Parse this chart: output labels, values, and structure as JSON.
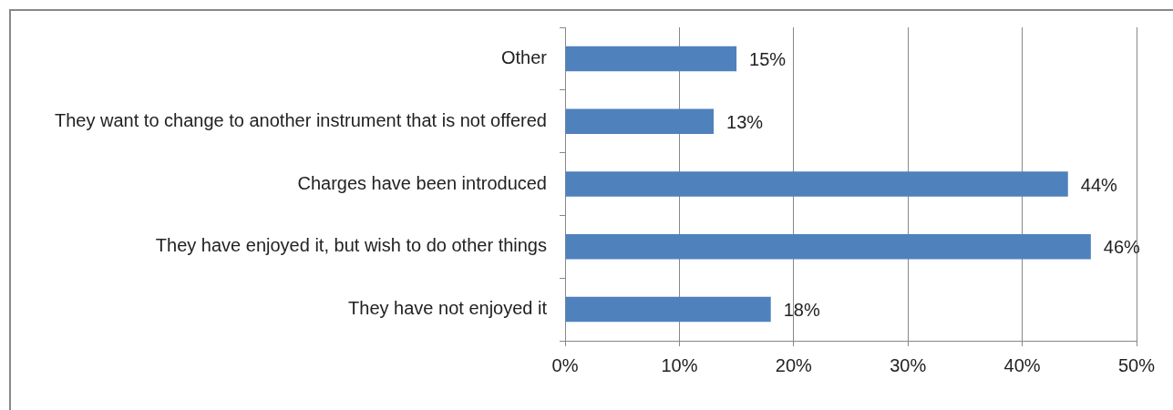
{
  "chart_data": {
    "type": "bar",
    "orientation": "horizontal",
    "categories": [
      "Other",
      "They want to change to another instrument that is not offered",
      "Charges have been introduced",
      "They have enjoyed it, but wish to do other things",
      "They have not enjoyed it"
    ],
    "values": [
      15,
      13,
      44,
      46,
      18
    ],
    "value_labels": [
      "15%",
      "13%",
      "44%",
      "46%",
      "18%"
    ],
    "color": "#4f81bd",
    "xlim": [
      0,
      50
    ],
    "xticks": [
      {
        "value": 0,
        "label": "0%"
      },
      {
        "value": 10,
        "label": "10%"
      },
      {
        "value": 20,
        "label": "20%"
      },
      {
        "value": 30,
        "label": "30%"
      },
      {
        "value": 40,
        "label": "40%"
      },
      {
        "value": 50,
        "label": "50%"
      }
    ],
    "grid": "x",
    "legend": false
  }
}
